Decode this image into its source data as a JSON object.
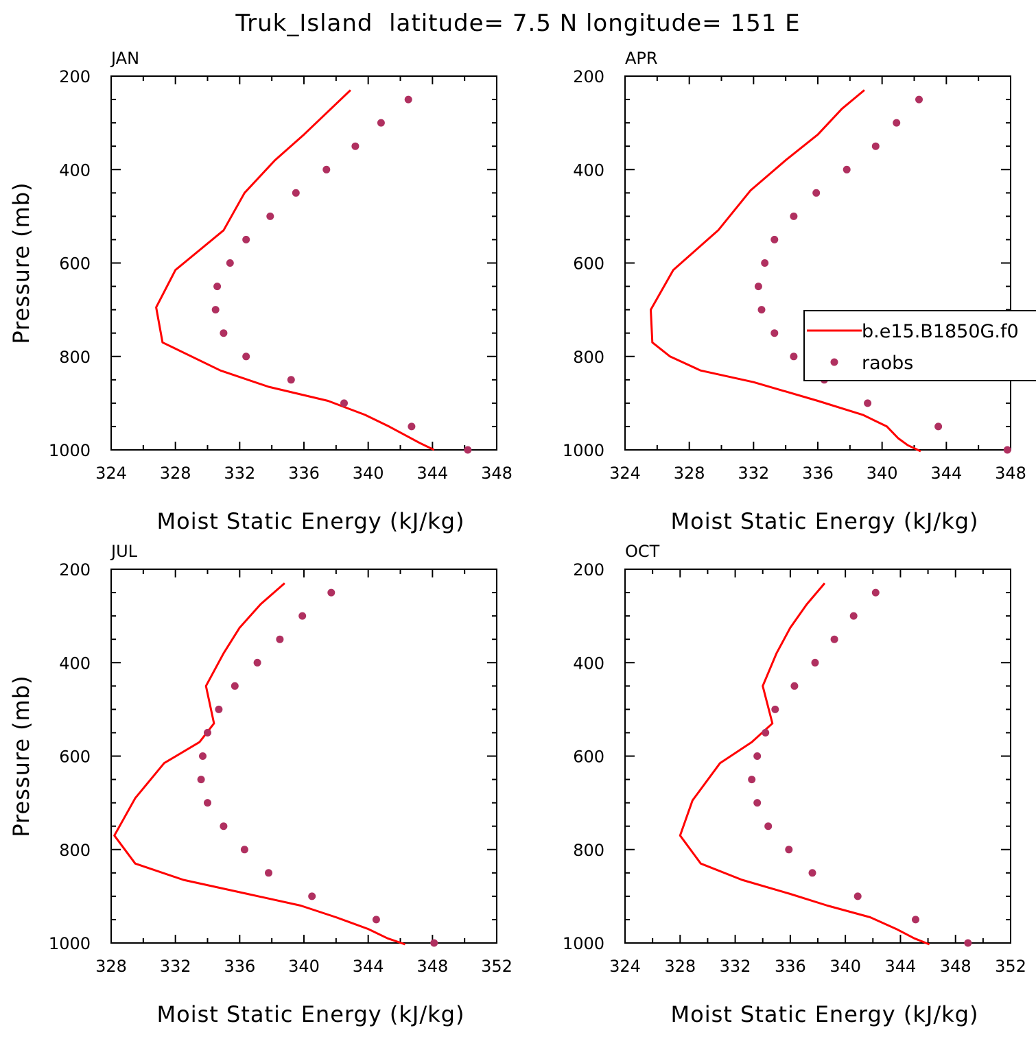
{
  "title": "Truk_Island  latitude= 7.5 N longitude= 151 E",
  "colors": {
    "model": "#ff0000",
    "obs": "#b03060"
  },
  "legend": {
    "model_label": "b.e15.B1850G.f0",
    "obs_label": "raobs",
    "panel": 1
  },
  "chart_data": [
    {
      "type": "line",
      "panel_title": "JAN",
      "xlabel": "Moist Static Energy (kJ/kg)",
      "ylabel": "Pressure (mb)",
      "xlim": [
        324,
        348
      ],
      "ylim": [
        200,
        1000
      ],
      "y_inverted": true,
      "xticks": [
        "324",
        "328",
        "332",
        "336",
        "340",
        "344",
        "348"
      ],
      "yticks": [
        "200",
        "400",
        "600",
        "800",
        "1000"
      ],
      "series": [
        {
          "name": "b.e15.B1850G.f0",
          "type": "line",
          "x": [
            338.9,
            336.0,
            334.2,
            332.3,
            331.0,
            328.0,
            326.8,
            327.2,
            330.8,
            333.8,
            337.5,
            339.8,
            341.3,
            343.2,
            344.1
          ],
          "y": [
            230,
            325,
            380,
            450,
            530,
            615,
            695,
            770,
            830,
            865,
            895,
            925,
            950,
            985,
            1000
          ]
        },
        {
          "name": "raobs",
          "type": "scatter",
          "x": [
            342.5,
            340.8,
            339.2,
            337.4,
            335.5,
            333.9,
            332.4,
            331.4,
            330.6,
            330.5,
            331.0,
            332.4,
            335.2,
            338.5,
            342.7,
            346.2
          ],
          "y": [
            250,
            300,
            350,
            400,
            450,
            500,
            550,
            600,
            650,
            700,
            750,
            800,
            850,
            900,
            950,
            1000
          ]
        }
      ]
    },
    {
      "type": "line",
      "panel_title": "APR",
      "xlabel": "Moist Static Energy (kJ/kg)",
      "ylabel": "",
      "xlim": [
        324,
        348
      ],
      "ylim": [
        200,
        1000
      ],
      "y_inverted": true,
      "xticks": [
        "324",
        "328",
        "332",
        "336",
        "340",
        "344",
        "348"
      ],
      "yticks": [
        "200",
        "400",
        "600",
        "800",
        "1000"
      ],
      "series": [
        {
          "name": "b.e15.B1850G.f0",
          "type": "line",
          "x": [
            338.9,
            337.5,
            336.0,
            334.0,
            331.8,
            329.8,
            327.0,
            325.6,
            325.7,
            326.8,
            328.7,
            332.0,
            336.0,
            338.8,
            340.3,
            341.0,
            341.6,
            342.4
          ],
          "y": [
            230,
            270,
            325,
            380,
            445,
            530,
            615,
            700,
            770,
            800,
            830,
            855,
            895,
            925,
            950,
            975,
            990,
            1003
          ]
        },
        {
          "name": "raobs",
          "type": "scatter",
          "x": [
            342.3,
            340.9,
            339.6,
            337.8,
            335.9,
            334.5,
            333.3,
            332.7,
            332.3,
            332.5,
            333.3,
            334.5,
            336.4,
            339.1,
            343.5,
            347.8
          ],
          "y": [
            250,
            300,
            350,
            400,
            450,
            500,
            550,
            600,
            650,
            700,
            750,
            800,
            850,
            900,
            950,
            1000
          ]
        }
      ]
    },
    {
      "type": "line",
      "panel_title": "JUL",
      "xlabel": "Moist Static Energy (kJ/kg)",
      "ylabel": "Pressure (mb)",
      "xlim": [
        328,
        352
      ],
      "ylim": [
        200,
        1000
      ],
      "y_inverted": true,
      "xticks": [
        "328",
        "332",
        "336",
        "340",
        "344",
        "348",
        "352"
      ],
      "yticks": [
        "200",
        "400",
        "600",
        "800",
        "1000"
      ],
      "series": [
        {
          "name": "b.e15.B1850G.f0",
          "type": "line",
          "x": [
            338.8,
            337.3,
            336.0,
            335.0,
            333.9,
            334.4,
            333.5,
            331.3,
            329.5,
            328.2,
            329.5,
            332.5,
            336.5,
            339.8,
            342.0,
            344.0,
            345.2,
            346.3
          ],
          "y": [
            230,
            275,
            325,
            380,
            450,
            530,
            570,
            615,
            690,
            770,
            830,
            865,
            895,
            920,
            945,
            970,
            990,
            1003
          ]
        },
        {
          "name": "raobs",
          "type": "scatter",
          "x": [
            341.7,
            339.9,
            338.5,
            337.1,
            335.7,
            334.7,
            334.0,
            333.7,
            333.6,
            334.0,
            335.0,
            336.3,
            337.8,
            340.5,
            344.5,
            348.1
          ],
          "y": [
            250,
            300,
            350,
            400,
            450,
            500,
            550,
            600,
            650,
            700,
            750,
            800,
            850,
            900,
            950,
            1000
          ]
        }
      ]
    },
    {
      "type": "line",
      "panel_title": "OCT",
      "xlabel": "Moist Static Energy (kJ/kg)",
      "ylabel": "",
      "xlim": [
        324,
        352
      ],
      "ylim": [
        200,
        1000
      ],
      "y_inverted": true,
      "xticks": [
        "324",
        "328",
        "332",
        "336",
        "340",
        "344",
        "348",
        "352"
      ],
      "yticks": [
        "200",
        "400",
        "600",
        "800",
        "1000"
      ],
      "series": [
        {
          "name": "b.e15.B1850G.f0",
          "type": "line",
          "x": [
            338.5,
            337.2,
            336.0,
            335.0,
            334.0,
            334.7,
            333.2,
            330.9,
            328.9,
            328.0,
            329.5,
            332.5,
            336.0,
            338.7,
            341.8,
            343.7,
            345.0,
            346.1
          ],
          "y": [
            230,
            275,
            325,
            380,
            450,
            530,
            570,
            615,
            695,
            770,
            830,
            865,
            895,
            920,
            945,
            970,
            990,
            1003
          ]
        },
        {
          "name": "raobs",
          "type": "scatter",
          "x": [
            342.2,
            340.6,
            339.2,
            337.8,
            336.3,
            334.9,
            334.2,
            333.6,
            333.2,
            333.6,
            334.4,
            335.9,
            337.6,
            340.9,
            345.1,
            348.9
          ],
          "y": [
            250,
            300,
            350,
            400,
            450,
            500,
            550,
            600,
            650,
            700,
            750,
            800,
            850,
            900,
            950,
            1000
          ]
        }
      ]
    }
  ]
}
